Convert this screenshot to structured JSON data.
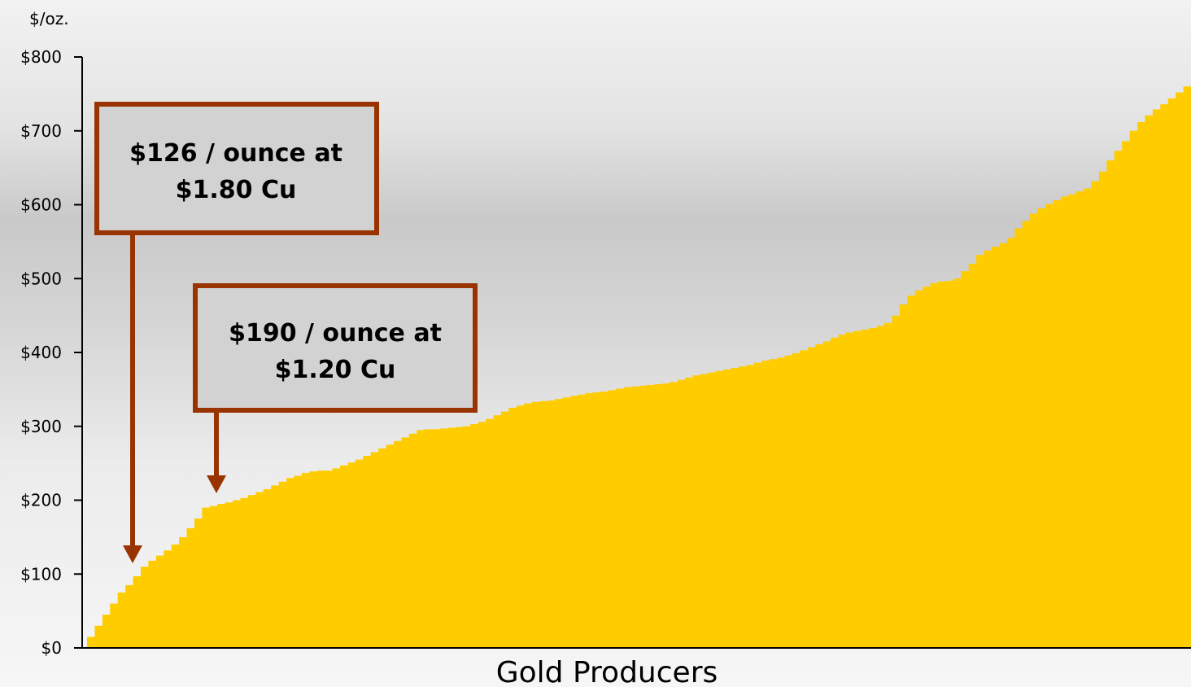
{
  "chart_data": {
    "type": "bar",
    "title": "",
    "ylabel": "$/oz.",
    "xlabel": "Gold Producers",
    "ylim": [
      0,
      800
    ],
    "yticks": [
      0,
      100,
      200,
      300,
      400,
      500,
      600,
      700,
      800
    ],
    "ytick_labels": [
      "$0",
      "$100",
      "$200",
      "$300",
      "$400",
      "$500",
      "$600",
      "$700",
      "$800"
    ],
    "grid": false,
    "bar_color": "#FFCC00",
    "values": [
      15,
      30,
      45,
      60,
      75,
      85,
      97,
      110,
      118,
      125,
      132,
      140,
      150,
      162,
      175,
      190,
      192,
      195,
      197,
      200,
      203,
      207,
      211,
      215,
      220,
      225,
      230,
      233,
      237,
      239,
      240,
      240,
      243,
      247,
      251,
      255,
      260,
      265,
      270,
      275,
      280,
      285,
      290,
      295,
      296,
      296,
      297,
      298,
      299,
      300,
      303,
      306,
      310,
      315,
      320,
      325,
      328,
      331,
      333,
      334,
      335,
      337,
      339,
      341,
      343,
      345,
      346,
      347,
      349,
      351,
      353,
      354,
      355,
      356,
      357,
      358,
      360,
      363,
      366,
      369,
      371,
      373,
      375,
      377,
      379,
      381,
      383,
      386,
      389,
      391,
      393,
      396,
      399,
      403,
      407,
      411,
      415,
      420,
      424,
      427,
      429,
      431,
      433,
      436,
      440,
      450,
      465,
      477,
      484,
      489,
      494,
      496,
      497,
      500,
      510,
      520,
      532,
      538,
      543,
      548,
      555,
      568,
      578,
      588,
      595,
      601,
      606,
      611,
      614,
      618,
      622,
      632,
      645,
      660,
      673,
      686,
      700,
      712,
      721,
      729,
      736,
      744,
      752,
      760
    ],
    "annotations": [
      {
        "text_line1": "$126 / ounce at",
        "text_line2": "$1.80 Cu",
        "target_index": 8
      },
      {
        "text_line1": "$190 / ounce at",
        "text_line2": "$1.20 Cu",
        "target_index": 23
      }
    ]
  }
}
